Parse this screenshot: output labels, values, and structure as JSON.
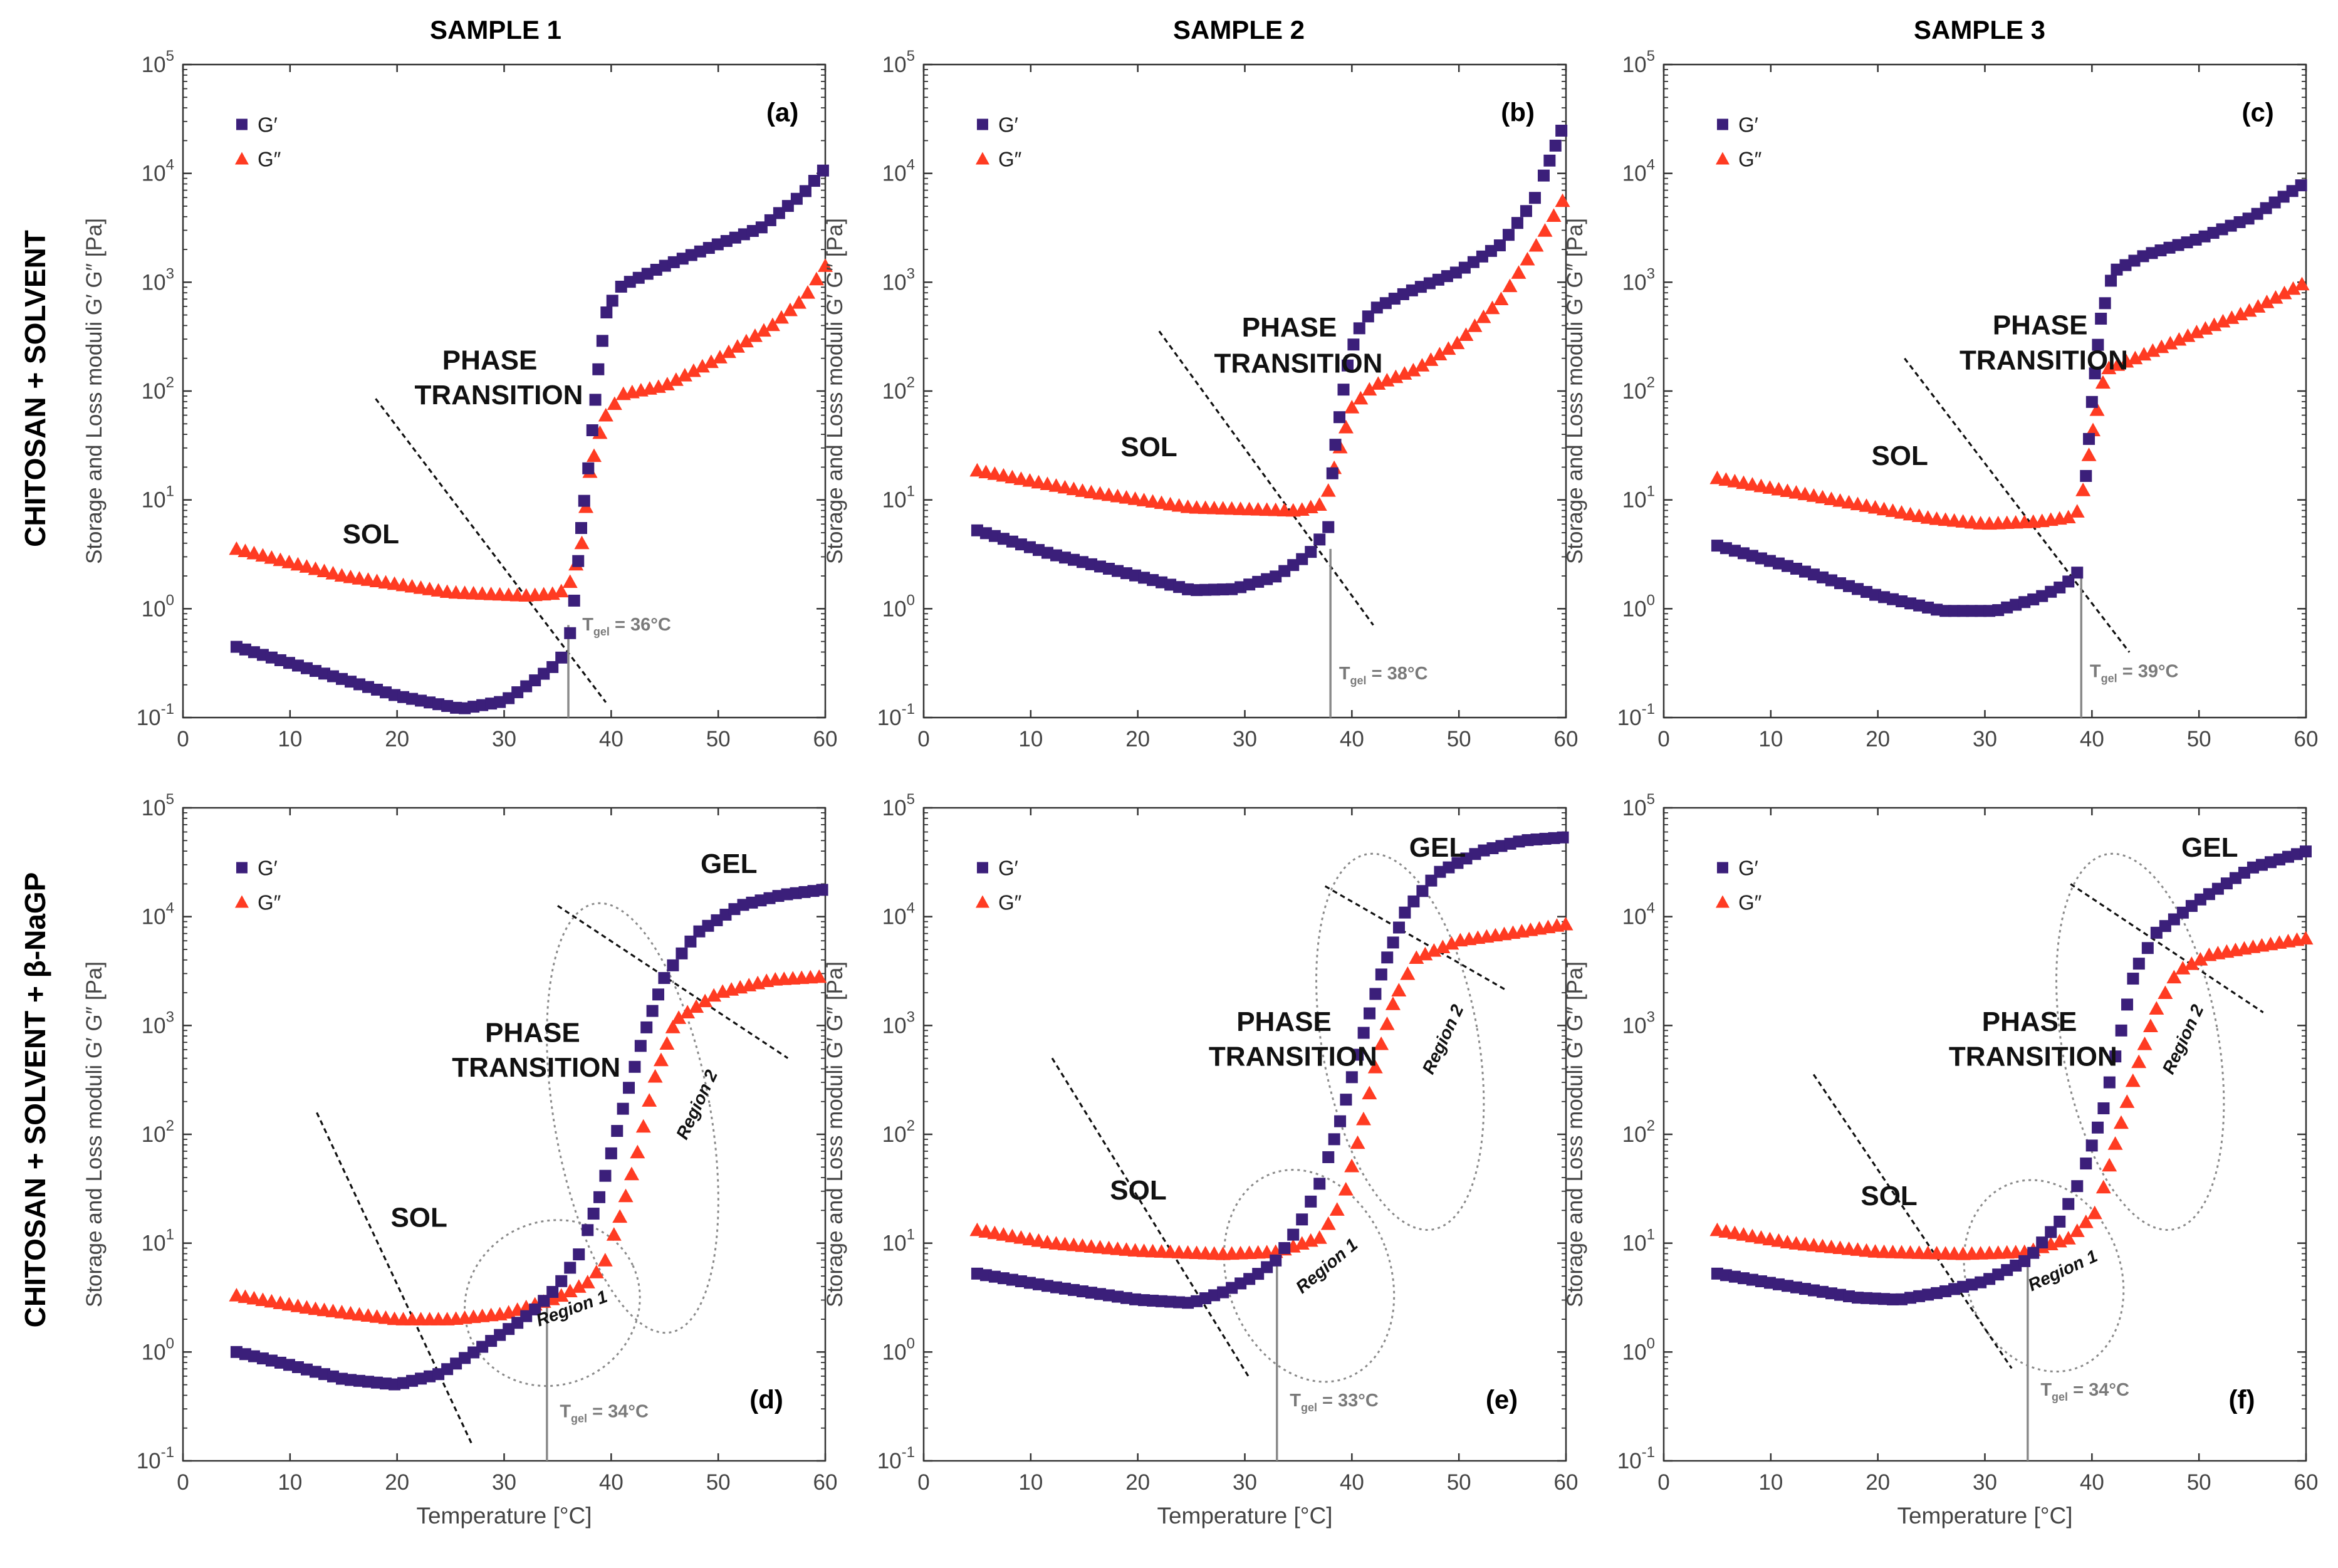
{
  "colors": {
    "g_prime": "#3b1f7a",
    "g_double_prime": "#ff3b22",
    "axis": "#333333",
    "tgel_line": "#8a8a8a",
    "guide": "#111111",
    "ellipse": "#8a8a8a"
  },
  "column_titles": [
    "SAMPLE 1",
    "SAMPLE 2",
    "SAMPLE 3"
  ],
  "row_titles": [
    "CHITOSAN + SOLVENT",
    "CHITOSAN + SOLVENT + β-NaGP"
  ],
  "y_axis_label": "Storage and Loss moduli G′ G″ [Pa]",
  "x_axis_label": "Temperature [°C]",
  "x_ticks": [
    "0",
    "10",
    "20",
    "30",
    "40",
    "50",
    "60"
  ],
  "y_ticks": [
    "10",
    "10",
    "10",
    "10",
    "10",
    "10",
    "10"
  ],
  "y_tick_exponents": [
    "-1",
    "0",
    "1",
    "2",
    "3",
    "4",
    "5"
  ],
  "legend": {
    "g_prime": "G′",
    "g_double_prime": "G″"
  },
  "chart_data": [
    {
      "type": "scatter",
      "panel": "(a)",
      "row": 0,
      "col": 0,
      "xlim": [
        0,
        60
      ],
      "ylim_log10": [
        -1,
        5
      ],
      "tgel_label": "T",
      "tgel_sub": "gel",
      "tgel_value": " = 36°C",
      "tgel": 36,
      "annotations": [
        "SOL",
        "PHASE",
        "TRANSITION"
      ],
      "region_labels": [],
      "series": [
        {
          "name": "G′",
          "knots": [
            [
              5,
              -0.35
            ],
            [
              10,
              -0.5
            ],
            [
              20,
              -0.8
            ],
            [
              26,
              -0.92
            ],
            [
              30,
              -0.85
            ],
            [
              33,
              -0.65
            ],
            [
              35,
              -0.5
            ],
            [
              36,
              -0.35
            ],
            [
              36.7,
              0.2
            ],
            [
              37.3,
              0.85
            ],
            [
              38.0,
              1.4
            ],
            [
              38.8,
              2.2
            ],
            [
              39.6,
              2.75
            ],
            [
              41,
              2.97
            ],
            [
              45,
              3.15
            ],
            [
              50,
              3.35
            ],
            [
              54,
              3.5
            ],
            [
              58,
              3.82
            ],
            [
              60,
              4.05
            ]
          ]
        },
        {
          "name": "G″",
          "knots": [
            [
              5,
              0.55
            ],
            [
              15,
              0.3
            ],
            [
              25,
              0.15
            ],
            [
              32,
              0.12
            ],
            [
              35,
              0.14
            ],
            [
              36,
              0.2
            ],
            [
              37.2,
              0.55
            ],
            [
              38,
              1.25
            ],
            [
              39.3,
              1.75
            ],
            [
              41,
              1.97
            ],
            [
              45,
              2.05
            ],
            [
              50,
              2.3
            ],
            [
              55,
              2.6
            ],
            [
              58,
              2.85
            ],
            [
              60,
              3.15
            ]
          ]
        }
      ],
      "guide_lines": [
        [
          [
            18,
            1.93
          ],
          [
            39.5,
            -0.86
          ]
        ]
      ],
      "ellipses": []
    },
    {
      "type": "scatter",
      "panel": "(b)",
      "row": 0,
      "col": 1,
      "xlim": [
        0,
        60
      ],
      "ylim_log10": [
        -1,
        5
      ],
      "tgel_label": "T",
      "tgel_sub": "gel",
      "tgel_value": " = 38°C",
      "tgel": 38,
      "annotations": [
        "SOL",
        "PHASE",
        "TRANSITION"
      ],
      "region_labels": [],
      "series": [
        {
          "name": "G′",
          "knots": [
            [
              5,
              0.72
            ],
            [
              12,
              0.5
            ],
            [
              20,
              0.3
            ],
            [
              25,
              0.17
            ],
            [
              29,
              0.18
            ],
            [
              33,
              0.3
            ],
            [
              36,
              0.5
            ],
            [
              37.8,
              0.75
            ],
            [
              38.3,
              1.4
            ],
            [
              39.5,
              2.2
            ],
            [
              40.5,
              2.55
            ],
            [
              42,
              2.75
            ],
            [
              45,
              2.9
            ],
            [
              50,
              3.1
            ],
            [
              54,
              3.35
            ],
            [
              57,
              3.75
            ],
            [
              60,
              4.5
            ]
          ]
        },
        {
          "name": "G″",
          "knots": [
            [
              5,
              1.27
            ],
            [
              15,
              1.08
            ],
            [
              25,
              0.93
            ],
            [
              35,
              0.9
            ],
            [
              37.5,
              0.97
            ],
            [
              38.5,
              1.35
            ],
            [
              40,
              1.85
            ],
            [
              42,
              2.05
            ],
            [
              46,
              2.2
            ],
            [
              50,
              2.45
            ],
            [
              54,
              2.85
            ],
            [
              57,
              3.3
            ],
            [
              60,
              3.8
            ]
          ]
        }
      ],
      "guide_lines": [
        [
          [
            22,
            2.55
          ],
          [
            42,
            -0.15
          ]
        ]
      ],
      "ellipses": []
    },
    {
      "type": "scatter",
      "panel": "(c)",
      "row": 0,
      "col": 2,
      "xlim": [
        0,
        60
      ],
      "ylim_log10": [
        -1,
        5
      ],
      "tgel_label": "T",
      "tgel_sub": "gel",
      "tgel_value": " = 39°C",
      "tgel": 39,
      "annotations": [
        "SOL",
        "PHASE",
        "TRANSITION"
      ],
      "region_labels": [],
      "series": [
        {
          "name": "G′",
          "knots": [
            [
              5,
              0.58
            ],
            [
              12,
              0.38
            ],
            [
              20,
              0.12
            ],
            [
              26,
              -0.02
            ],
            [
              31,
              -0.02
            ],
            [
              35,
              0.1
            ],
            [
              37.5,
              0.22
            ],
            [
              38.8,
              0.35
            ],
            [
              39.3,
              1.05
            ],
            [
              40,
              1.9
            ],
            [
              40.8,
              2.65
            ],
            [
              42,
              3.1
            ],
            [
              45,
              3.25
            ],
            [
              50,
              3.4
            ],
            [
              55,
              3.6
            ],
            [
              60,
              3.92
            ]
          ]
        },
        {
          "name": "G″",
          "knots": [
            [
              5,
              1.2
            ],
            [
              15,
              1.02
            ],
            [
              25,
              0.83
            ],
            [
              30,
              0.78
            ],
            [
              35,
              0.8
            ],
            [
              38.5,
              0.85
            ],
            [
              39.2,
              1.1
            ],
            [
              40.2,
              1.7
            ],
            [
              41.3,
              2.2
            ],
            [
              44,
              2.3
            ],
            [
              50,
              2.55
            ],
            [
              55,
              2.75
            ],
            [
              60,
              3.0
            ]
          ]
        }
      ],
      "guide_lines": [
        [
          [
            22.5,
            2.3
          ],
          [
            43.5,
            -0.4
          ]
        ]
      ],
      "ellipses": []
    },
    {
      "type": "scatter",
      "panel": "(d)",
      "row": 1,
      "col": 0,
      "xlim": [
        0,
        60
      ],
      "ylim_log10": [
        -1,
        5
      ],
      "tgel_label": "T",
      "tgel_sub": "gel",
      "tgel_value": " = 34°C",
      "tgel": 34,
      "annotations": [
        "SOL",
        "PHASE",
        "TRANSITION",
        "GEL"
      ],
      "region_labels": [
        "Region 1",
        "Region 2"
      ],
      "series": [
        {
          "name": "G′",
          "knots": [
            [
              5,
              0.0
            ],
            [
              10,
              -0.12
            ],
            [
              15,
              -0.25
            ],
            [
              20,
              -0.3
            ],
            [
              24,
              -0.2
            ],
            [
              28,
              0.05
            ],
            [
              31,
              0.25
            ],
            [
              33,
              0.4
            ],
            [
              35,
              0.6
            ],
            [
              37,
              0.9
            ],
            [
              39,
              1.45
            ],
            [
              41,
              2.2
            ],
            [
              43,
              2.9
            ],
            [
              45,
              3.45
            ],
            [
              48,
              3.85
            ],
            [
              52,
              4.1
            ],
            [
              56,
              4.2
            ],
            [
              60,
              4.25
            ]
          ]
        },
        {
          "name": "G″",
          "knots": [
            [
              5,
              0.52
            ],
            [
              12,
              0.4
            ],
            [
              20,
              0.3
            ],
            [
              25,
              0.3
            ],
            [
              30,
              0.35
            ],
            [
              35,
              0.5
            ],
            [
              38,
              0.65
            ],
            [
              39.5,
              0.85
            ],
            [
              41,
              1.3
            ],
            [
              42.5,
              1.85
            ],
            [
              44,
              2.5
            ],
            [
              46,
              3.05
            ],
            [
              50,
              3.3
            ],
            [
              55,
              3.42
            ],
            [
              60,
              3.45
            ]
          ]
        }
      ],
      "guide_lines": [
        [
          [
            12.5,
            2.2
          ],
          [
            27,
            -0.85
          ]
        ],
        [
          [
            35,
            4.1
          ],
          [
            56.5,
            2.7
          ]
        ]
      ],
      "ellipses": [
        [
          34.5,
          0.45,
          8.3,
          0.75,
          25
        ],
        [
          42,
          2.15,
          7.3,
          2.0,
          10
        ]
      ]
    },
    {
      "type": "scatter",
      "panel": "(e)",
      "row": 1,
      "col": 1,
      "xlim": [
        0,
        60
      ],
      "ylim_log10": [
        -1,
        5
      ],
      "tgel_label": "T",
      "tgel_sub": "gel",
      "tgel_value": " = 33°C",
      "tgel": 33,
      "annotations": [
        "SOL",
        "PHASE",
        "TRANSITION",
        "GEL"
      ],
      "region_labels": [
        "Region 1",
        "Region 2"
      ],
      "series": [
        {
          "name": "G′",
          "knots": [
            [
              5,
              0.72
            ],
            [
              12,
              0.6
            ],
            [
              20,
              0.48
            ],
            [
              25,
              0.45
            ],
            [
              28,
              0.55
            ],
            [
              31,
              0.7
            ],
            [
              33,
              0.85
            ],
            [
              35,
              1.15
            ],
            [
              37,
              1.55
            ],
            [
              39,
              2.15
            ],
            [
              41,
              2.9
            ],
            [
              43,
              3.55
            ],
            [
              45,
              4.05
            ],
            [
              48,
              4.4
            ],
            [
              52,
              4.6
            ],
            [
              56,
              4.7
            ],
            [
              60,
              4.73
            ]
          ]
        },
        {
          "name": "G″",
          "knots": [
            [
              5,
              1.12
            ],
            [
              12,
              1.0
            ],
            [
              20,
              0.93
            ],
            [
              28,
              0.9
            ],
            [
              33,
              0.92
            ],
            [
              37,
              1.05
            ],
            [
              39.2,
              1.4
            ],
            [
              41,
              2.1
            ],
            [
              42.5,
              2.75
            ],
            [
              44,
              3.25
            ],
            [
              46,
              3.62
            ],
            [
              50,
              3.78
            ],
            [
              55,
              3.85
            ],
            [
              60,
              3.93
            ]
          ]
        }
      ],
      "guide_lines": [
        [
          [
            12,
            2.7
          ],
          [
            30.5,
            -0.25
          ]
        ],
        [
          [
            37.5,
            4.28
          ],
          [
            54.5,
            3.32
          ]
        ]
      ],
      "ellipses": [
        [
          36,
          0.7,
          7.6,
          1.0,
          20
        ],
        [
          44.5,
          2.85,
          7.3,
          1.75,
          10
        ]
      ]
    },
    {
      "type": "scatter",
      "panel": "(f)",
      "row": 1,
      "col": 2,
      "xlim": [
        0,
        60
      ],
      "ylim_log10": [
        -1,
        5
      ],
      "tgel_label": "T",
      "tgel_sub": "gel",
      "tgel_value": " = 34°C",
      "tgel": 34,
      "annotations": [
        "SOL",
        "PHASE",
        "TRANSITION",
        "GEL"
      ],
      "region_labels": [
        "Region 1",
        "Region 2"
      ],
      "series": [
        {
          "name": "G′",
          "knots": [
            [
              5,
              0.72
            ],
            [
              12,
              0.6
            ],
            [
              18,
              0.5
            ],
            [
              22,
              0.48
            ],
            [
              26,
              0.55
            ],
            [
              30,
              0.65
            ],
            [
              34,
              0.85
            ],
            [
              37,
              1.2
            ],
            [
              39,
              1.6
            ],
            [
              41,
              2.2
            ],
            [
              42.5,
              2.85
            ],
            [
              44,
              3.5
            ],
            [
              46,
              3.85
            ],
            [
              50,
              4.15
            ],
            [
              55,
              4.45
            ],
            [
              60,
              4.6
            ]
          ]
        },
        {
          "name": "G″",
          "knots": [
            [
              5,
              1.12
            ],
            [
              12,
              1.0
            ],
            [
              20,
              0.92
            ],
            [
              28,
              0.9
            ],
            [
              34,
              0.92
            ],
            [
              38,
              1.05
            ],
            [
              40.5,
              1.3
            ],
            [
              42,
              1.85
            ],
            [
              44,
              2.55
            ],
            [
              46,
              3.15
            ],
            [
              48,
              3.5
            ],
            [
              51,
              3.65
            ],
            [
              55,
              3.72
            ],
            [
              60,
              3.8
            ]
          ]
        }
      ],
      "guide_lines": [
        [
          [
            14,
            2.55
          ],
          [
            32.5,
            -0.15
          ]
        ],
        [
          [
            38,
            4.3
          ],
          [
            56,
            3.12
          ]
        ]
      ],
      "ellipses": [
        [
          35.5,
          0.7,
          7.2,
          0.9,
          20
        ],
        [
          44.5,
          2.85,
          7.3,
          1.75,
          10
        ]
      ]
    }
  ]
}
